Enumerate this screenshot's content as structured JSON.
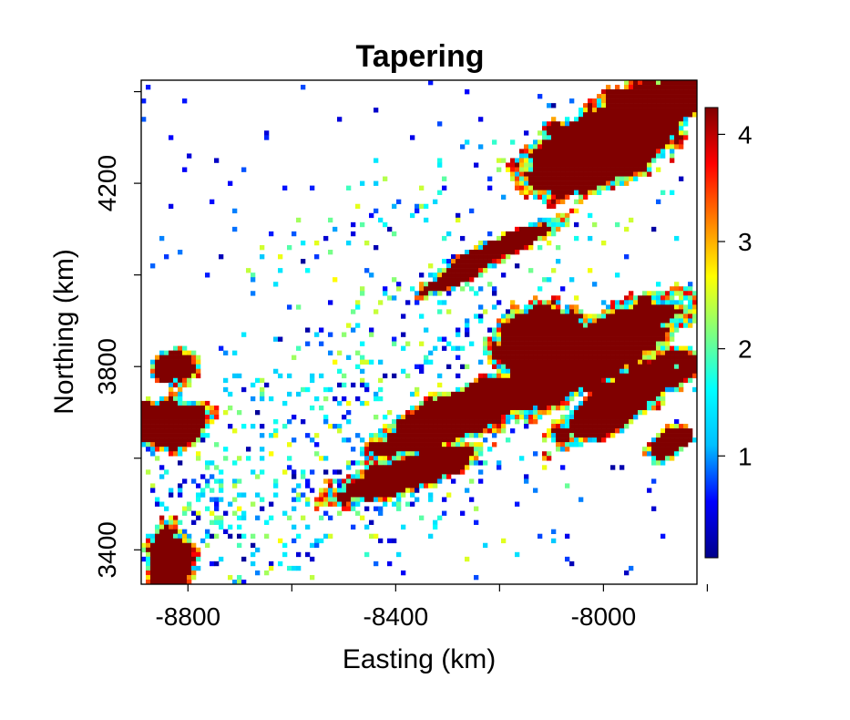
{
  "chart_data": {
    "type": "heatmap",
    "title": "Tapering",
    "xlabel": "Easting (km)",
    "ylabel": "Northing (km)",
    "xlim": [
      -8890,
      -7820
    ],
    "ylim": [
      3325,
      4425
    ],
    "x_ticks": [
      -8800,
      -8600,
      -8400,
      -8200,
      -8000,
      -7800
    ],
    "x_tick_labels": [
      "-8800",
      "-8400",
      "-8000"
    ],
    "y_ticks": [
      3400,
      3600,
      3800,
      4000,
      4200,
      4400
    ],
    "y_tick_labels": [
      "3400",
      "3800",
      "4200"
    ],
    "colorbar": {
      "range": [
        0.05,
        4.25
      ],
      "ticks": [
        1,
        2,
        3,
        4
      ],
      "tick_labels": [
        "1",
        "2",
        "3",
        "4"
      ],
      "palette": [
        "#00008b",
        "#0000ff",
        "#00bfff",
        "#00ffff",
        "#7fff7f",
        "#ffff00",
        "#ff7f00",
        "#ff0000",
        "#800000"
      ]
    },
    "saturated_color": "#800000",
    "background_color": "#ffffff",
    "grid": false,
    "description_regions": [
      {
        "label": "high",
        "value": 4.2,
        "x": [
          -8010,
          -7830
        ],
        "y": [
          4250,
          4420
        ]
      },
      {
        "label": "high",
        "value": 4.2,
        "x": [
          -8130,
          -7820
        ],
        "y": [
          3690,
          4000
        ]
      },
      {
        "label": "high",
        "value": 4.2,
        "x": [
          -8410,
          -8180
        ],
        "y": [
          3590,
          3730
        ]
      },
      {
        "label": "high",
        "value": 4.2,
        "x": [
          -8890,
          -8830
        ],
        "y": [
          3330,
          3800
        ]
      },
      {
        "label": "low",
        "value": 0.5,
        "x": [
          -8800,
          -8300
        ],
        "y": [
          3400,
          3650
        ]
      }
    ]
  }
}
